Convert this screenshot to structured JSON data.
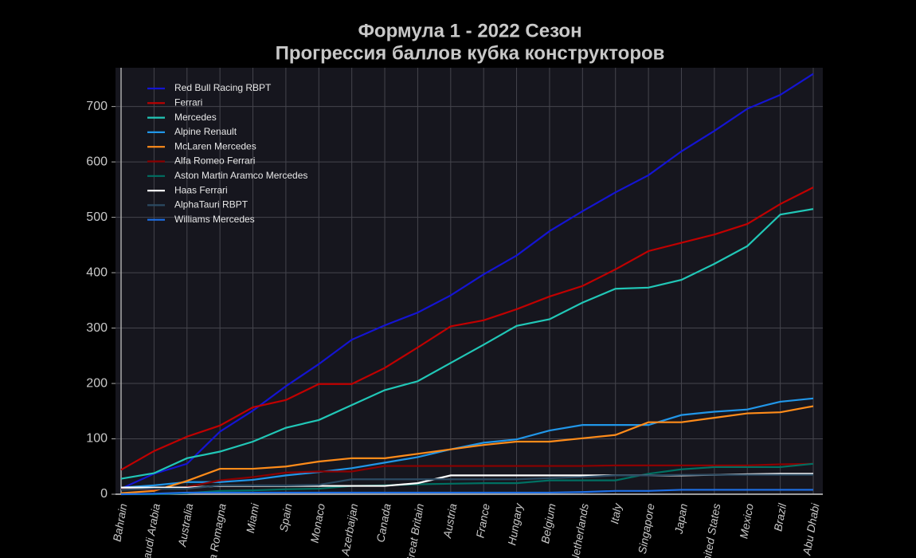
{
  "chart_data": {
    "type": "line",
    "title": "Формула 1 - 2022 Сезон",
    "subtitle": "Прогрессия баллов кубка конструкторов",
    "categories": [
      "Bahrain",
      "Saudi Arabia",
      "Australia",
      "Emilia Romagna",
      "Miami",
      "Spain",
      "Monaco",
      "Azerbaijan",
      "Canada",
      "Great Britain",
      "Austria",
      "France",
      "Hungary",
      "Belgium",
      "Netherlands",
      "Italy",
      "Singapore",
      "Japan",
      "United States",
      "Mexico",
      "Brazil",
      "Abu Dhabi"
    ],
    "series": [
      {
        "name": "Red Bull Racing RBPT",
        "color": "#1414d2",
        "values": [
          10,
          37,
          55,
          113,
          151,
          195,
          235,
          279,
          305,
          328,
          359,
          397,
          431,
          475,
          511,
          545,
          576,
          619,
          656,
          696,
          721,
          759
        ]
      },
      {
        "name": "Ferrari",
        "color": "#c00000",
        "values": [
          44,
          78,
          104,
          124,
          157,
          170,
          199,
          199,
          228,
          265,
          303,
          314,
          334,
          357,
          376,
          406,
          439,
          454,
          469,
          488,
          524,
          554
        ]
      },
      {
        "name": "Mercedes",
        "color": "#21c7b7",
        "values": [
          28,
          38,
          65,
          77,
          95,
          120,
          134,
          161,
          188,
          204,
          237,
          270,
          304,
          316,
          346,
          371,
          373,
          387,
          416,
          448,
          505,
          515
        ]
      },
      {
        "name": "Alpine Renault",
        "color": "#2196e8",
        "values": [
          12,
          16,
          22,
          22,
          26,
          34,
          40,
          47,
          57,
          67,
          81,
          93,
          99,
          115,
          125,
          125,
          125,
          143,
          149,
          153,
          167,
          173
        ]
      },
      {
        "name": "McLaren Mercedes",
        "color": "#ff8c1a",
        "values": [
          2,
          6,
          24,
          46,
          46,
          50,
          59,
          65,
          65,
          73,
          81,
          89,
          95,
          95,
          101,
          107,
          130,
          130,
          138,
          146,
          148,
          159
        ]
      },
      {
        "name": "Alfa Romeo Ferrari",
        "color": "#8b0000",
        "values": [
          9,
          9,
          13,
          25,
          31,
          39,
          41,
          41,
          51,
          51,
          51,
          51,
          51,
          51,
          51,
          52,
          52,
          52,
          52,
          52,
          54,
          55
        ]
      },
      {
        "name": "Aston Martin Aramco Mercedes",
        "color": "#006f62",
        "values": [
          0,
          0,
          2,
          6,
          7,
          9,
          10,
          15,
          16,
          18,
          19,
          20,
          20,
          25,
          25,
          25,
          37,
          45,
          49,
          49,
          49,
          55
        ]
      },
      {
        "name": "Haas Ferrari",
        "color": "#ffffff",
        "values": [
          12,
          12,
          12,
          15,
          15,
          15,
          15,
          15,
          15,
          20,
          34,
          34,
          34,
          34,
          34,
          34,
          34,
          34,
          35,
          36,
          37,
          37
        ]
      },
      {
        "name": "AlphaTauri RBPT",
        "color": "#2b4a62",
        "values": [
          8,
          10,
          10,
          16,
          16,
          16,
          17,
          27,
          27,
          27,
          27,
          27,
          27,
          29,
          31,
          34,
          34,
          35,
          35,
          35,
          35,
          35
        ]
      },
      {
        "name": "Williams Mercedes",
        "color": "#1e6fe6",
        "values": [
          0,
          1,
          3,
          3,
          3,
          3,
          3,
          3,
          3,
          3,
          3,
          3,
          3,
          3,
          4,
          6,
          6,
          8,
          8,
          8,
          8,
          8
        ]
      }
    ],
    "ylim": [
      0,
      770
    ],
    "yticks": [
      0,
      100,
      200,
      300,
      400,
      500,
      600,
      700
    ],
    "grid": true,
    "legend": "upper left"
  }
}
